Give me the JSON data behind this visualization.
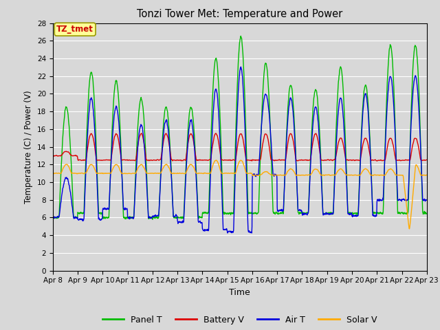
{
  "title": "Tonzi Tower Met: Temperature and Power",
  "xlabel": "Time",
  "ylabel": "Temperature (C) / Power (V)",
  "annotation_text": "TZ_tmet",
  "annotation_color": "#cc0000",
  "annotation_bg": "#ffff99",
  "background_color": "#d8d8d8",
  "plot_bg_color": "#d8d8d8",
  "ylim": [
    0,
    28
  ],
  "yticks": [
    0,
    2,
    4,
    6,
    8,
    10,
    12,
    14,
    16,
    18,
    20,
    22,
    24,
    26,
    28
  ],
  "n_days": 15,
  "xtick_labels": [
    "Apr 8",
    "Apr 9",
    "Apr 10",
    "Apr 11",
    "Apr 12",
    "Apr 13",
    "Apr 14",
    "Apr 15",
    "Apr 16",
    "Apr 17",
    "Apr 18",
    "Apr 19",
    "Apr 20",
    "Apr 21",
    "Apr 22",
    "Apr 23"
  ],
  "colors": {
    "panel_t": "#00bb00",
    "battery_v": "#dd0000",
    "air_t": "#0000dd",
    "solar_v": "#ffaa00"
  },
  "legend_labels": [
    "Panel T",
    "Battery V",
    "Air T",
    "Solar V"
  ]
}
